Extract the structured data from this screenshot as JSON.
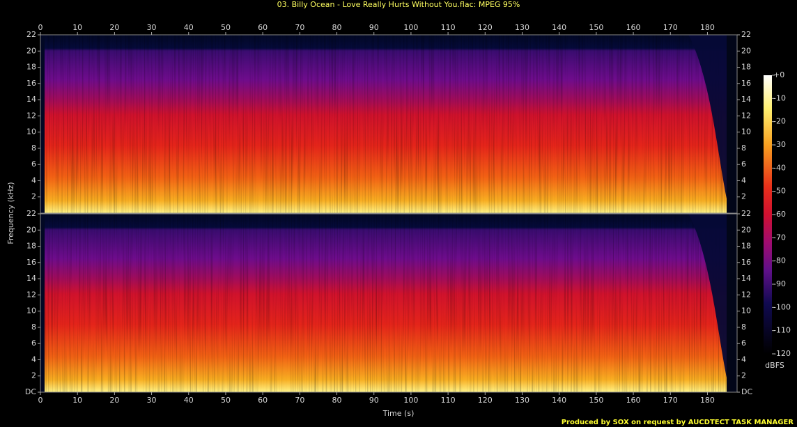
{
  "title": "03. Billy Ocean - Love Really Hurts Without You.flac: MPEG 95%",
  "xlabel": "Time (s)",
  "ylabel": "Frequency (kHz)",
  "footer": "Produced by SOX on request by AUCDTECT TASK MANAGER",
  "colorbar": {
    "label": "dBFS",
    "ylim": [
      -120,
      0
    ],
    "ticks": [
      {
        "value": 0,
        "label": "+0"
      },
      -10,
      -20,
      -30,
      -40,
      -50,
      -60,
      -70,
      -80,
      -90,
      -100,
      -110,
      -120
    ]
  },
  "chart_data": [
    {
      "type": "spectrogram",
      "xlim": [
        0,
        188
      ],
      "ylim": [
        0,
        22
      ],
      "xticks": [
        0,
        10,
        20,
        30,
        40,
        50,
        60,
        70,
        80,
        90,
        100,
        110,
        120,
        130,
        140,
        150,
        160,
        170,
        180
      ],
      "yticks": [
        2,
        4,
        6,
        8,
        10,
        12,
        14,
        16,
        18,
        20,
        22
      ]
    },
    {
      "type": "spectrogram",
      "xlim": [
        0,
        188
      ],
      "ylim": [
        0,
        22
      ],
      "xticks": [
        0,
        10,
        20,
        30,
        40,
        50,
        60,
        70,
        80,
        90,
        100,
        110,
        120,
        130,
        140,
        150,
        160,
        170,
        180
      ],
      "yticks": [
        {
          "value": 0,
          "label": "DC"
        },
        2,
        4,
        6,
        8,
        10,
        12,
        14,
        16,
        18,
        20,
        22
      ]
    }
  ]
}
